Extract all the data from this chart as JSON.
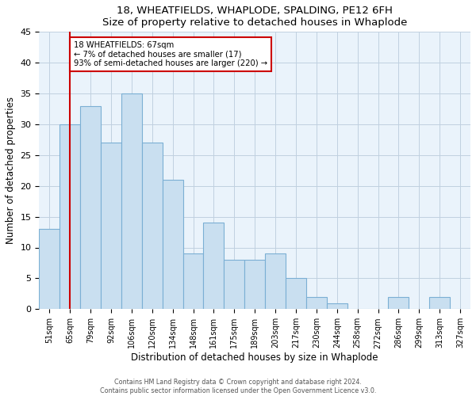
{
  "title1": "18, WHEATFIELDS, WHAPLODE, SPALDING, PE12 6FH",
  "title2": "Size of property relative to detached houses in Whaplode",
  "xlabel": "Distribution of detached houses by size in Whaplode",
  "ylabel": "Number of detached properties",
  "bin_labels": [
    "51sqm",
    "65sqm",
    "79sqm",
    "92sqm",
    "106sqm",
    "120sqm",
    "134sqm",
    "148sqm",
    "161sqm",
    "175sqm",
    "189sqm",
    "203sqm",
    "217sqm",
    "230sqm",
    "244sqm",
    "258sqm",
    "272sqm",
    "286sqm",
    "299sqm",
    "313sqm",
    "327sqm"
  ],
  "bar_heights": [
    13,
    30,
    33,
    27,
    35,
    27,
    21,
    9,
    14,
    8,
    8,
    9,
    5,
    2,
    1,
    0,
    0,
    2,
    0,
    2,
    0
  ],
  "bar_color": "#c9dff0",
  "bar_edge_color": "#7bafd4",
  "vline_x_index": 1,
  "vline_color": "#cc0000",
  "annotation_title": "18 WHEATFIELDS: 67sqm",
  "annotation_line1": "← 7% of detached houses are smaller (17)",
  "annotation_line2": "93% of semi-detached houses are larger (220) →",
  "annotation_box_color": "#ffffff",
  "annotation_box_edge": "#cc0000",
  "ylim": [
    0,
    45
  ],
  "yticks": [
    0,
    5,
    10,
    15,
    20,
    25,
    30,
    35,
    40,
    45
  ],
  "footer1": "Contains HM Land Registry data © Crown copyright and database right 2024.",
  "footer2": "Contains public sector information licensed under the Open Government Licence v3.0.",
  "bg_color": "#eaf3fb",
  "title_fontsize": 9.5,
  "label_fontsize": 8.5,
  "tick_fontsize": 7,
  "footer_fontsize": 5.8
}
